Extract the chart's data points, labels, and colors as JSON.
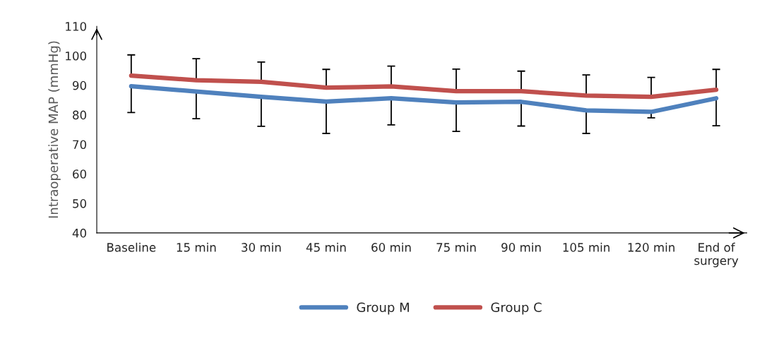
{
  "chart_data": {
    "type": "line",
    "ylabel": "Intraoperative MAP (mmHg)",
    "categories": [
      "Baseline",
      "15 min",
      "30 min",
      "45 min",
      "60 min",
      "75 min",
      "90 min",
      "105 min",
      "120 min",
      "End of\nsurgery"
    ],
    "series": [
      {
        "name": "Group M",
        "color": "#4f81bd",
        "values": [
          89.7,
          87.9,
          86.1,
          84.5,
          85.6,
          84.2,
          84.4,
          81.5,
          81.0,
          85.6
        ],
        "errors": [
          [
            80.8,
            89.7
          ],
          [
            78.7,
            87.9
          ],
          [
            76.1,
            86.1
          ],
          [
            73.7,
            84.5
          ],
          [
            76.6,
            85.6
          ],
          [
            74.4,
            84.2
          ],
          [
            76.2,
            84.4
          ],
          [
            73.7,
            81.5
          ],
          [
            79.0,
            81.0
          ],
          [
            76.3,
            85.6
          ]
        ]
      },
      {
        "name": "Group C",
        "color": "#c0504d",
        "values": [
          93.3,
          91.7,
          91.2,
          89.2,
          89.6,
          88.0,
          88.0,
          86.5,
          86.1,
          88.5
        ],
        "errors": [
          [
            93.3,
            100.3
          ],
          [
            91.7,
            99.0
          ],
          [
            91.2,
            97.9
          ],
          [
            89.2,
            95.4
          ],
          [
            89.6,
            96.5
          ],
          [
            88.0,
            95.5
          ],
          [
            88.0,
            94.8
          ],
          [
            86.5,
            93.5
          ],
          [
            86.1,
            92.7
          ],
          [
            88.5,
            95.4
          ]
        ]
      }
    ],
    "ylim": [
      40,
      110
    ],
    "yticks": [
      40,
      50,
      60,
      70,
      80,
      90,
      100,
      110
    ],
    "grid": false,
    "legend": "bottom",
    "marker": "none",
    "line_style": "solid"
  }
}
